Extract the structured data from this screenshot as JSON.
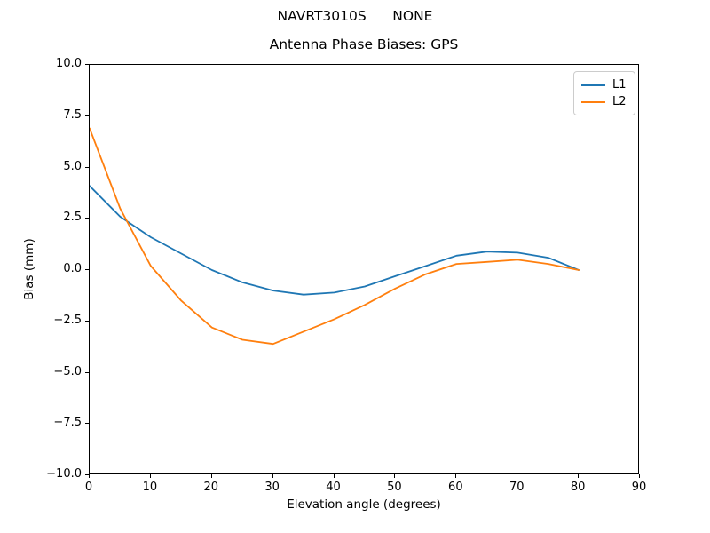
{
  "figure": {
    "suptitle": "NAVRT3010S      NONE"
  },
  "chart_data": {
    "type": "line",
    "title": "Antenna Phase Biases: GPS",
    "xlabel": "Elevation angle (degrees)",
    "ylabel": "Bias (mm)",
    "xlim": [
      0,
      90
    ],
    "ylim": [
      -10,
      10
    ],
    "grid": false,
    "x": [
      0,
      5,
      10,
      15,
      20,
      25,
      30,
      35,
      40,
      45,
      50,
      55,
      60,
      65,
      70,
      75,
      80
    ],
    "series": [
      {
        "name": "L1",
        "color": "#1f77b4",
        "values": [
          4.1,
          2.6,
          1.6,
          0.8,
          0.0,
          -0.6,
          -1.0,
          -1.2,
          -1.1,
          -0.8,
          -0.3,
          0.2,
          0.7,
          0.9,
          0.85,
          0.6,
          0.0
        ]
      },
      {
        "name": "L2",
        "color": "#ff7f0e",
        "values": [
          6.9,
          3.0,
          0.2,
          -1.5,
          -2.8,
          -3.4,
          -3.6,
          -3.0,
          -2.4,
          -1.7,
          -0.9,
          -0.2,
          0.3,
          0.4,
          0.5,
          0.3,
          0.0
        ]
      }
    ],
    "xticks": {
      "values": [
        0,
        10,
        20,
        30,
        40,
        50,
        60,
        70,
        80,
        90
      ],
      "labels": [
        "0",
        "10",
        "20",
        "30",
        "40",
        "50",
        "60",
        "70",
        "80",
        "90"
      ]
    },
    "yticks": {
      "values": [
        10,
        7.5,
        5,
        2.5,
        0,
        -2.5,
        -5,
        -7.5,
        -10
      ],
      "labels": [
        "10.0",
        "7.5",
        "5.0",
        "2.5",
        "0.0",
        "−2.5",
        "−5.0",
        "−7.5",
        "−10.0"
      ]
    },
    "legend": {
      "position": "upper right",
      "entries": [
        "L1",
        "L2"
      ]
    }
  }
}
